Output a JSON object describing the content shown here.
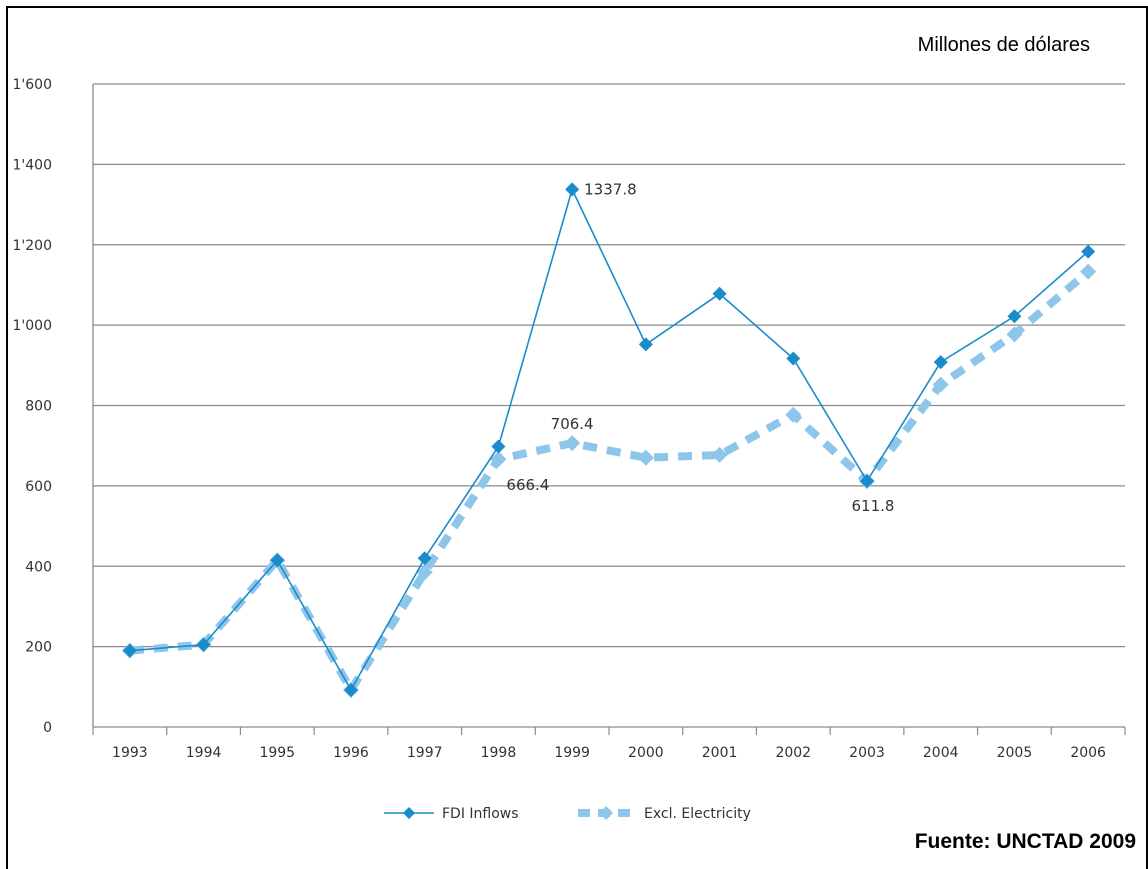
{
  "units_label": "Millones de dólares",
  "source_label": "Fuente: UNCTAD 2009",
  "chart_data": {
    "type": "line",
    "categories": [
      "1993",
      "1994",
      "1995",
      "1996",
      "1997",
      "1998",
      "1999",
      "2000",
      "2001",
      "2002",
      "2003",
      "2004",
      "2005",
      "2006"
    ],
    "ylim": [
      0,
      1600
    ],
    "yticks": [
      0,
      200,
      400,
      600,
      800,
      1000,
      1200,
      1400,
      1600
    ],
    "ytick_labels": [
      "0",
      "200",
      "400",
      "600",
      "800",
      "1'000",
      "1'200",
      "1'400",
      "1'600"
    ],
    "grid": true,
    "legend_position": "bottom",
    "series": [
      {
        "name": "FDI Inflows",
        "color": "#1a8ccc",
        "style": "solid-diamond",
        "values": [
          190,
          205,
          415,
          92,
          420,
          698,
          1337.8,
          952,
          1078,
          917,
          611.8,
          908,
          1022,
          1183
        ]
      },
      {
        "name": "Excl. Electricity",
        "color": "#8ec5ea",
        "style": "dashed-diamond",
        "values": [
          190,
          205,
          415,
          92,
          385,
          666.4,
          706.4,
          670,
          677,
          777,
          611.8,
          852,
          977,
          1133
        ]
      }
    ],
    "annotations": [
      {
        "text": "1337.8",
        "series": 0,
        "index": 6,
        "pos": "right"
      },
      {
        "text": "706.4",
        "series": 1,
        "index": 6,
        "pos": "above"
      },
      {
        "text": "666.4",
        "series": 1,
        "index": 5,
        "pos": "right-below"
      },
      {
        "text": "611.8",
        "series": 1,
        "index": 10,
        "pos": "below"
      }
    ]
  }
}
